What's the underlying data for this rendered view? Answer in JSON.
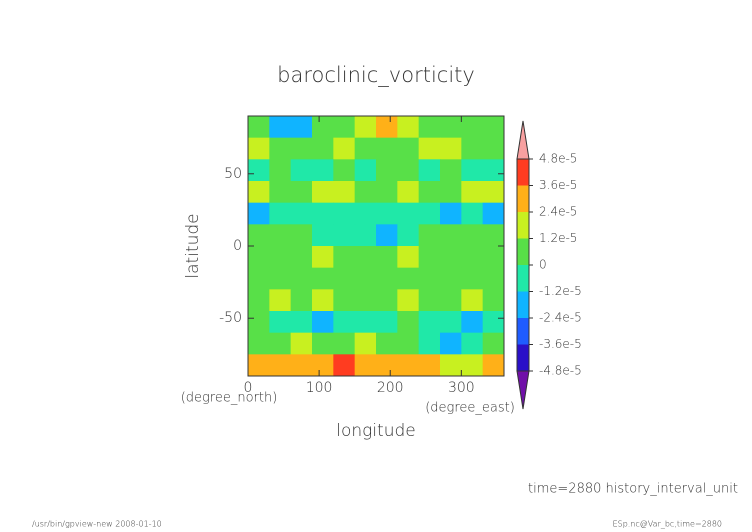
{
  "chart_data": {
    "type": "heatmap",
    "title": "baroclinic_vorticity",
    "x_label": "longitude",
    "y_label": "latitude",
    "x_unit": "(degree_east)",
    "y_unit": "(degree_north)",
    "xlim": [
      0,
      360
    ],
    "ylim": [
      -90,
      90
    ],
    "xticks": [
      0,
      100,
      200,
      300
    ],
    "yticks": [
      -50,
      0,
      50
    ],
    "x": [
      15,
      45,
      75,
      105,
      135,
      165,
      195,
      225,
      255,
      285,
      315,
      345
    ],
    "y": [
      82.5,
      67.5,
      52.5,
      37.5,
      22.5,
      7.5,
      -7.5,
      -22.5,
      -37.5,
      -52.5,
      -67.5,
      -82.5
    ],
    "values": [
      [
        5e-06,
        -1.5e-05,
        -2e-05,
        2e-06,
        8e-06,
        1.5e-05,
        2.6e-05,
        1.5e-05,
        5e-06,
        3e-06,
        5e-06,
        4e-06
      ],
      [
        1.3e-05,
        8e-06,
        6e-06,
        1e-05,
        1.4e-05,
        1.2e-05,
        1e-05,
        8e-06,
        1.3e-05,
        1.5e-05,
        1.1e-05,
        9e-06
      ],
      [
        -3e-06,
        2e-06,
        -5e-06,
        -2e-06,
        3e-06,
        -4e-06,
        2e-06,
        4e-06,
        -3e-06,
        2e-06,
        -5e-06,
        0
      ],
      [
        1.4e-05,
        1.2e-05,
        1e-05,
        1.3e-05,
        1.5e-05,
        1.1e-05,
        1e-05,
        1.4e-05,
        1.2e-05,
        1e-05,
        1.3e-05,
        1.4e-05
      ],
      [
        -1.4e-05,
        -8e-06,
        -4e-06,
        -1e-06,
        -6e-06,
        -3e-06,
        -5e-06,
        -2e-06,
        -8e-06,
        -1.3e-05,
        -4e-06,
        -1.5e-05
      ],
      [
        6e-06,
        4e-06,
        5e-06,
        -1e-06,
        -3e-06,
        -8e-06,
        -1.3e-05,
        -4e-06,
        2e-06,
        5e-06,
        6e-06,
        4e-06
      ],
      [
        1.1e-05,
        9e-06,
        1.2e-05,
        1.3e-05,
        1e-05,
        8e-06,
        1.1e-05,
        1.3e-05,
        1.2e-05,
        9e-06,
        1e-05,
        1.2e-05
      ],
      [
        5e-06,
        3e-06,
        4e-06,
        6e-06,
        5e-06,
        4e-06,
        3e-06,
        5e-06,
        7e-06,
        4e-06,
        3e-06,
        5e-06
      ],
      [
        1e-05,
        1.3e-05,
        9e-06,
        1.4e-05,
        1.1e-05,
        8e-06,
        1.2e-05,
        1.3e-05,
        1e-05,
        9e-06,
        1.4e-05,
        1.1e-05
      ],
      [
        3e-06,
        -2e-06,
        -6e-06,
        -1.4e-05,
        -9e-06,
        -4e-06,
        -2e-06,
        3e-06,
        -5e-06,
        -1.1e-05,
        -1.4e-05,
        -3e-06
      ],
      [
        1.2e-05,
        1e-05,
        1.4e-05,
        1.1e-05,
        1e-05,
        1.3e-05,
        9e-06,
        1.2e-05,
        -3e-06,
        -2e-05,
        -8e-06,
        1e-05
      ],
      [
        2.8e-05,
        3.2e-05,
        3e-05,
        3.4e-05,
        3.8e-05,
        3.6e-05,
        3.3e-05,
        3e-05,
        2.6e-05,
        2.2e-05,
        2.4e-05,
        2.6e-05
      ]
    ],
    "colorbar": {
      "ticks": [
        {
          "value": -4.8e-05,
          "label": "-4.8e-5"
        },
        {
          "value": -3.6e-05,
          "label": "-3.6e-5"
        },
        {
          "value": -2.4e-05,
          "label": "-2.4e-5"
        },
        {
          "value": -1.2e-05,
          "label": "-1.2e-5"
        },
        0,
        {
          "value": 1.2e-05,
          "label": "1.2e-5"
        },
        {
          "value": 2.4e-05,
          "label": "2.4e-5"
        },
        {
          "value": 3.6e-05,
          "label": "3.6e-5"
        },
        {
          "value": 4.8e-05,
          "label": "4.8e-5"
        }
      ],
      "colors": [
        "#2a10c8",
        "#1f5cff",
        "#10b4ff",
        "#20e8a8",
        "#58e048",
        "#c8f020",
        "#ffb018",
        "#ff3c20"
      ],
      "under_color": "#7010a8",
      "over_color": "#f8a0a0"
    },
    "annotation": "time=2880  history_interval_unit",
    "footer_left": "/usr/bin/gpview-new  2008-01-10",
    "footer_right": "ESp.nc@Var_bc,time=2880"
  }
}
